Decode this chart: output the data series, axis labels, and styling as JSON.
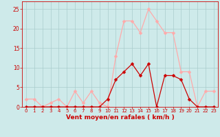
{
  "x": [
    0,
    1,
    2,
    3,
    4,
    5,
    6,
    7,
    8,
    9,
    10,
    11,
    12,
    13,
    14,
    15,
    16,
    17,
    18,
    19,
    20,
    21,
    22,
    23
  ],
  "vent_moyen": [
    0,
    0,
    0,
    0,
    0,
    0,
    0,
    0,
    0,
    0,
    2,
    7,
    9,
    11,
    8,
    11,
    0,
    8,
    8,
    7,
    2,
    0,
    0,
    0
  ],
  "rafales": [
    2,
    2,
    0,
    1,
    2,
    0,
    4,
    1,
    4,
    1,
    0,
    13,
    22,
    22,
    19,
    25,
    22,
    19,
    19,
    9,
    9,
    0,
    4,
    4
  ],
  "line_color_moyen": "#cc0000",
  "line_color_rafales": "#ffaaaa",
  "bg_color": "#ceeaea",
  "grid_color": "#aacccc",
  "xlabel": "Vent moyen/en rafales ( km/h )",
  "ylim": [
    0,
    27
  ],
  "yticks": [
    0,
    5,
    10,
    15,
    20,
    25
  ],
  "xticks": [
    0,
    1,
    2,
    3,
    4,
    5,
    6,
    7,
    8,
    9,
    10,
    11,
    12,
    13,
    14,
    15,
    16,
    17,
    18,
    19,
    20,
    21,
    22,
    23
  ],
  "markersize": 2.5,
  "linewidth": 0.9
}
